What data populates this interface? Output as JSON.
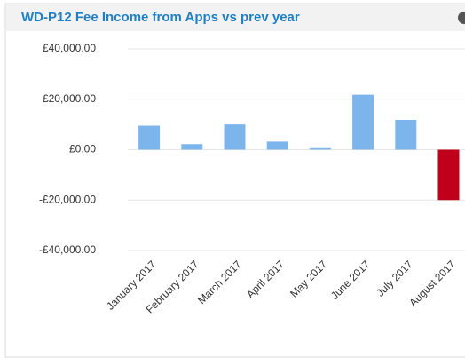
{
  "chart_data": {
    "type": "bar",
    "title": "WD-P12 Fee Income from Apps vs prev year",
    "categories": [
      "January 2017",
      "February 2017",
      "March 2017",
      "April 2017",
      "May 2017",
      "June 2017",
      "July 2017",
      "August 2017"
    ],
    "values": [
      9500,
      2200,
      10000,
      3200,
      600,
      21800,
      11800,
      -20000
    ],
    "color": "#7cb5ec",
    "negative_color": "#c0001b",
    "ylim": [
      -40000,
      40000
    ],
    "yticks": [
      {
        "value": -40000,
        "label": "-£40,000.00"
      },
      {
        "value": -20000,
        "label": "-£20,000.00"
      },
      {
        "value": 0,
        "label": "£0.00"
      },
      {
        "value": 20000,
        "label": "£20,000.00"
      },
      {
        "value": 40000,
        "label": "£40,000.00"
      }
    ],
    "grid": true
  }
}
